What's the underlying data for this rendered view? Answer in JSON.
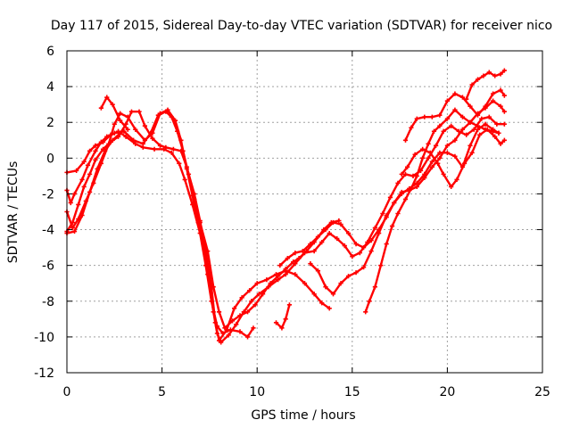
{
  "chart_data": {
    "type": "scatter",
    "title": "Day 117 of 2015, Sidereal Day-to-day VTEC variation (SDTVAR) for receiver nico",
    "xlabel": "GPS time / hours",
    "ylabel": "SDTVAR / TECUs",
    "xlim": [
      0,
      25
    ],
    "ylim": [
      -12,
      6
    ],
    "xticks": [
      0,
      5,
      10,
      15,
      20,
      25
    ],
    "yticks": [
      -12,
      -10,
      -8,
      -6,
      -4,
      -2,
      0,
      2,
      4,
      6
    ],
    "x_tick_labels": [
      "0",
      "5",
      "10",
      "15",
      "20",
      "25"
    ],
    "y_tick_labels": [
      "-12",
      "-10",
      "-8",
      "-6",
      "-4",
      "-2",
      "0",
      "2",
      "4",
      "6"
    ],
    "grid": true,
    "legend": "none",
    "marker": "plus",
    "color": "#ff0000",
    "series": [
      {
        "points": [
          [
            0.0,
            -0.8
          ],
          [
            0.5,
            -0.7
          ],
          [
            0.9,
            -0.2
          ],
          [
            1.2,
            0.4
          ],
          [
            1.5,
            0.7
          ],
          [
            1.9,
            0.9
          ],
          [
            2.3,
            1.3
          ],
          [
            2.7,
            1.5
          ],
          [
            3.1,
            1.2
          ],
          [
            3.6,
            0.8
          ],
          [
            4.0,
            0.6
          ],
          [
            4.6,
            0.5
          ],
          [
            5.1,
            0.5
          ],
          [
            5.5,
            0.3
          ],
          [
            5.9,
            -0.3
          ],
          [
            6.2,
            -1.2
          ],
          [
            6.6,
            -2.6
          ],
          [
            7.0,
            -4.2
          ],
          [
            7.3,
            -6.0
          ],
          [
            7.6,
            -8.0
          ],
          [
            7.9,
            -9.4
          ],
          [
            8.2,
            -9.8
          ],
          [
            8.6,
            -9.6
          ],
          [
            9.1,
            -9.7
          ],
          [
            9.5,
            -10.0
          ],
          [
            9.8,
            -9.5
          ]
        ]
      },
      {
        "points": [
          [
            0.0,
            -4.1
          ],
          [
            0.3,
            -3.6
          ],
          [
            0.6,
            -2.6
          ],
          [
            0.9,
            -1.6
          ],
          [
            1.2,
            -0.9
          ],
          [
            1.5,
            -0.1
          ],
          [
            1.9,
            0.5
          ],
          [
            2.3,
            0.9
          ],
          [
            2.7,
            1.2
          ],
          [
            3.1,
            1.9
          ],
          [
            3.4,
            2.6
          ],
          [
            3.8,
            2.6
          ],
          [
            4.1,
            1.8
          ],
          [
            4.5,
            1.1
          ],
          [
            4.9,
            0.7
          ],
          [
            5.2,
            0.6
          ],
          [
            5.6,
            0.5
          ],
          [
            6.0,
            0.4
          ],
          [
            6.3,
            -0.5
          ],
          [
            6.7,
            -2.0
          ],
          [
            7.0,
            -3.5
          ],
          [
            7.3,
            -5.2
          ],
          [
            7.6,
            -7.2
          ],
          [
            7.8,
            -9.2
          ],
          [
            8.0,
            -10.2
          ],
          [
            8.4,
            -9.6
          ],
          [
            8.8,
            -8.4
          ],
          [
            9.2,
            -7.8
          ],
          [
            9.6,
            -7.4
          ],
          [
            10.0,
            -7.0
          ],
          [
            10.5,
            -6.8
          ],
          [
            11.0,
            -6.5
          ],
          [
            11.5,
            -6.3
          ],
          [
            12.0,
            -6.5
          ],
          [
            12.5,
            -7.0
          ],
          [
            13.0,
            -7.6
          ],
          [
            13.4,
            -8.1
          ],
          [
            13.8,
            -8.4
          ]
        ]
      },
      {
        "points": [
          [
            0.0,
            -3.0
          ],
          [
            0.3,
            -3.9
          ],
          [
            0.6,
            -3.4
          ],
          [
            1.0,
            -2.4
          ],
          [
            1.4,
            -1.4
          ],
          [
            1.8,
            -0.3
          ],
          [
            2.2,
            0.8
          ],
          [
            2.5,
            1.9
          ],
          [
            2.8,
            2.5
          ],
          [
            3.2,
            2.3
          ],
          [
            3.6,
            1.6
          ],
          [
            4.1,
            1.0
          ],
          [
            4.5,
            1.4
          ],
          [
            4.9,
            2.5
          ],
          [
            5.3,
            2.7
          ],
          [
            5.7,
            2.1
          ],
          [
            6.0,
            1.0
          ],
          [
            6.3,
            -0.6
          ],
          [
            6.6,
            -2.1
          ],
          [
            6.9,
            -3.6
          ],
          [
            7.2,
            -4.9
          ],
          [
            7.4,
            -6.5
          ],
          [
            7.7,
            -8.6
          ],
          [
            7.9,
            -9.8
          ],
          [
            8.1,
            -10.3
          ],
          [
            8.5,
            -9.9
          ],
          [
            8.9,
            -9.3
          ],
          [
            9.3,
            -8.6
          ],
          [
            9.7,
            -8.0
          ],
          [
            10.1,
            -7.6
          ],
          [
            10.6,
            -7.2
          ],
          [
            11.1,
            -6.8
          ],
          [
            11.5,
            -6.5
          ],
          [
            12.0,
            -5.9
          ],
          [
            12.5,
            -5.3
          ],
          [
            13.0,
            -5.2
          ],
          [
            13.4,
            -4.7
          ],
          [
            13.8,
            -4.2
          ],
          [
            14.2,
            -4.5
          ],
          [
            14.6,
            -4.9
          ],
          [
            15.0,
            -5.5
          ],
          [
            15.4,
            -5.3
          ],
          [
            15.8,
            -4.7
          ],
          [
            16.2,
            -3.9
          ],
          [
            16.6,
            -3.1
          ],
          [
            17.0,
            -2.2
          ],
          [
            17.4,
            -1.4
          ],
          [
            17.8,
            -0.9
          ],
          [
            18.2,
            -1.0
          ],
          [
            18.6,
            -0.7
          ],
          [
            19.0,
            0.0
          ],
          [
            19.4,
            0.7
          ],
          [
            19.8,
            1.5
          ],
          [
            20.2,
            1.8
          ],
          [
            20.6,
            1.5
          ],
          [
            21.0,
            1.3
          ],
          [
            21.4,
            1.6
          ],
          [
            21.8,
            2.2
          ],
          [
            22.2,
            2.3
          ],
          [
            22.6,
            1.9
          ],
          [
            23.0,
            1.9
          ]
        ]
      },
      {
        "points": [
          [
            0.0,
            -1.8
          ],
          [
            0.2,
            -2.5
          ],
          [
            0.4,
            -2.0
          ],
          [
            0.8,
            -1.2
          ],
          [
            1.1,
            -0.4
          ],
          [
            1.5,
            0.4
          ],
          [
            1.8,
            0.9
          ],
          [
            2.1,
            1.2
          ],
          [
            2.5,
            1.4
          ],
          [
            3.0,
            1.5
          ],
          [
            3.5,
            1.0
          ],
          [
            4.0,
            0.8
          ],
          [
            4.4,
            1.4
          ],
          [
            4.8,
            2.4
          ],
          [
            5.2,
            2.6
          ],
          [
            5.5,
            2.3
          ],
          [
            5.8,
            1.5
          ],
          [
            6.1,
            0.4
          ],
          [
            6.4,
            -0.9
          ],
          [
            6.7,
            -2.3
          ],
          [
            7.0,
            -3.6
          ],
          [
            7.4,
            -5.2
          ],
          [
            7.7,
            -7.2
          ],
          [
            8.0,
            -8.6
          ],
          [
            8.3,
            -9.5
          ],
          [
            8.7,
            -9.1
          ],
          [
            9.1,
            -8.8
          ],
          [
            9.5,
            -8.6
          ],
          [
            9.9,
            -8.2
          ],
          [
            10.3,
            -7.6
          ],
          [
            10.7,
            -7.0
          ],
          [
            11.1,
            -6.6
          ],
          [
            11.5,
            -6.2
          ],
          [
            11.9,
            -5.8
          ],
          [
            12.2,
            -5.6
          ],
          [
            12.6,
            -5.2
          ],
          [
            13.0,
            -4.7
          ],
          [
            13.5,
            -4.0
          ],
          [
            13.9,
            -3.6
          ],
          [
            14.3,
            -3.5
          ]
        ]
      },
      {
        "points": [
          [
            0.0,
            -4.2
          ],
          [
            0.4,
            -4.1
          ],
          [
            0.8,
            -3.2
          ],
          [
            1.2,
            -1.9
          ],
          [
            1.6,
            -0.6
          ],
          [
            2.0,
            0.4
          ],
          [
            2.4,
            1.0
          ],
          [
            2.8,
            1.4
          ]
        ]
      },
      {
        "points": [
          [
            1.8,
            2.8
          ],
          [
            2.1,
            3.4
          ],
          [
            2.4,
            3.0
          ],
          [
            2.8,
            2.1
          ],
          [
            3.2,
            1.6
          ]
        ]
      },
      {
        "points": [
          [
            11.0,
            -9.2
          ],
          [
            11.3,
            -9.5
          ],
          [
            11.5,
            -9.0
          ],
          [
            11.7,
            -8.2
          ]
        ]
      },
      {
        "points": [
          [
            11.2,
            -6.0
          ],
          [
            11.6,
            -5.6
          ],
          [
            12.0,
            -5.3
          ],
          [
            12.4,
            -5.2
          ],
          [
            12.8,
            -4.8
          ],
          [
            13.2,
            -4.4
          ],
          [
            13.6,
            -4.0
          ],
          [
            14.0,
            -3.6
          ],
          [
            14.4,
            -3.7
          ],
          [
            14.8,
            -4.2
          ],
          [
            15.2,
            -4.8
          ],
          [
            15.6,
            -5.0
          ],
          [
            16.0,
            -4.6
          ],
          [
            16.4,
            -4.0
          ],
          [
            16.8,
            -3.3
          ],
          [
            17.2,
            -2.5
          ],
          [
            17.6,
            -2.0
          ],
          [
            18.0,
            -1.7
          ],
          [
            18.4,
            -1.4
          ],
          [
            18.8,
            -0.9
          ],
          [
            19.2,
            -0.2
          ],
          [
            19.6,
            0.3
          ],
          [
            20.0,
            0.3
          ],
          [
            20.4,
            0.1
          ],
          [
            20.8,
            -0.5
          ],
          [
            21.2,
            0.7
          ],
          [
            21.6,
            1.6
          ],
          [
            22.0,
            1.9
          ],
          [
            22.4,
            1.6
          ],
          [
            22.7,
            1.4
          ]
        ]
      },
      {
        "points": [
          [
            12.8,
            -5.9
          ],
          [
            13.2,
            -6.3
          ],
          [
            13.6,
            -7.2
          ],
          [
            14.0,
            -7.6
          ],
          [
            14.4,
            -7.0
          ],
          [
            14.8,
            -6.6
          ],
          [
            15.2,
            -6.4
          ],
          [
            15.6,
            -6.1
          ],
          [
            16.0,
            -5.2
          ],
          [
            16.4,
            -4.2
          ],
          [
            16.8,
            -3.2
          ],
          [
            17.2,
            -2.5
          ],
          [
            17.6,
            -1.9
          ],
          [
            18.0,
            -1.8
          ],
          [
            18.4,
            -1.6
          ],
          [
            18.8,
            -1.1
          ],
          [
            19.2,
            -0.5
          ],
          [
            19.6,
            0.0
          ],
          [
            20.0,
            0.7
          ],
          [
            20.4,
            1.0
          ],
          [
            20.8,
            1.6
          ],
          [
            21.2,
            2.0
          ],
          [
            21.6,
            1.8
          ],
          [
            22.0,
            1.6
          ],
          [
            22.4,
            1.5
          ],
          [
            22.7,
            1.4
          ]
        ]
      },
      {
        "points": [
          [
            15.7,
            -8.6
          ],
          [
            15.9,
            -8.0
          ],
          [
            16.2,
            -7.2
          ],
          [
            16.5,
            -6.0
          ],
          [
            16.8,
            -4.8
          ],
          [
            17.1,
            -3.8
          ],
          [
            17.4,
            -3.1
          ],
          [
            17.8,
            -2.3
          ],
          [
            18.1,
            -1.7
          ],
          [
            18.4,
            -1.0
          ],
          [
            18.7,
            0.0
          ],
          [
            19.0,
            0.8
          ],
          [
            19.3,
            1.5
          ],
          [
            19.6,
            1.8
          ],
          [
            20.0,
            2.2
          ],
          [
            20.4,
            2.7
          ],
          [
            20.8,
            2.3
          ],
          [
            21.2,
            2.0
          ],
          [
            21.6,
            2.5
          ],
          [
            22.0,
            2.8
          ],
          [
            22.4,
            3.2
          ],
          [
            22.8,
            2.9
          ],
          [
            23.0,
            2.6
          ]
        ]
      },
      {
        "points": [
          [
            17.8,
            1.0
          ],
          [
            18.1,
            1.7
          ],
          [
            18.4,
            2.2
          ],
          [
            18.8,
            2.3
          ],
          [
            19.2,
            2.3
          ],
          [
            19.6,
            2.4
          ],
          [
            20.0,
            3.2
          ],
          [
            20.4,
            3.6
          ],
          [
            20.8,
            3.4
          ],
          [
            21.2,
            2.9
          ],
          [
            21.6,
            2.4
          ],
          [
            22.0,
            2.9
          ],
          [
            22.4,
            3.6
          ],
          [
            22.8,
            3.8
          ],
          [
            23.0,
            3.5
          ]
        ]
      },
      {
        "points": [
          [
            17.6,
            -0.9
          ],
          [
            17.9,
            -0.5
          ],
          [
            18.3,
            0.2
          ],
          [
            18.7,
            0.5
          ],
          [
            19.1,
            0.3
          ],
          [
            19.5,
            -0.3
          ],
          [
            19.8,
            -0.9
          ],
          [
            20.2,
            -1.6
          ],
          [
            20.5,
            -1.2
          ],
          [
            20.9,
            -0.3
          ],
          [
            21.3,
            0.3
          ],
          [
            21.7,
            1.3
          ],
          [
            22.1,
            1.6
          ],
          [
            22.5,
            1.2
          ],
          [
            22.8,
            0.8
          ],
          [
            23.0,
            1.0
          ]
        ]
      },
      {
        "points": [
          [
            21.0,
            3.3
          ],
          [
            21.3,
            4.1
          ],
          [
            21.6,
            4.4
          ],
          [
            21.9,
            4.6
          ],
          [
            22.2,
            4.8
          ],
          [
            22.5,
            4.6
          ],
          [
            22.8,
            4.7
          ],
          [
            23.0,
            4.9
          ]
        ]
      }
    ]
  }
}
